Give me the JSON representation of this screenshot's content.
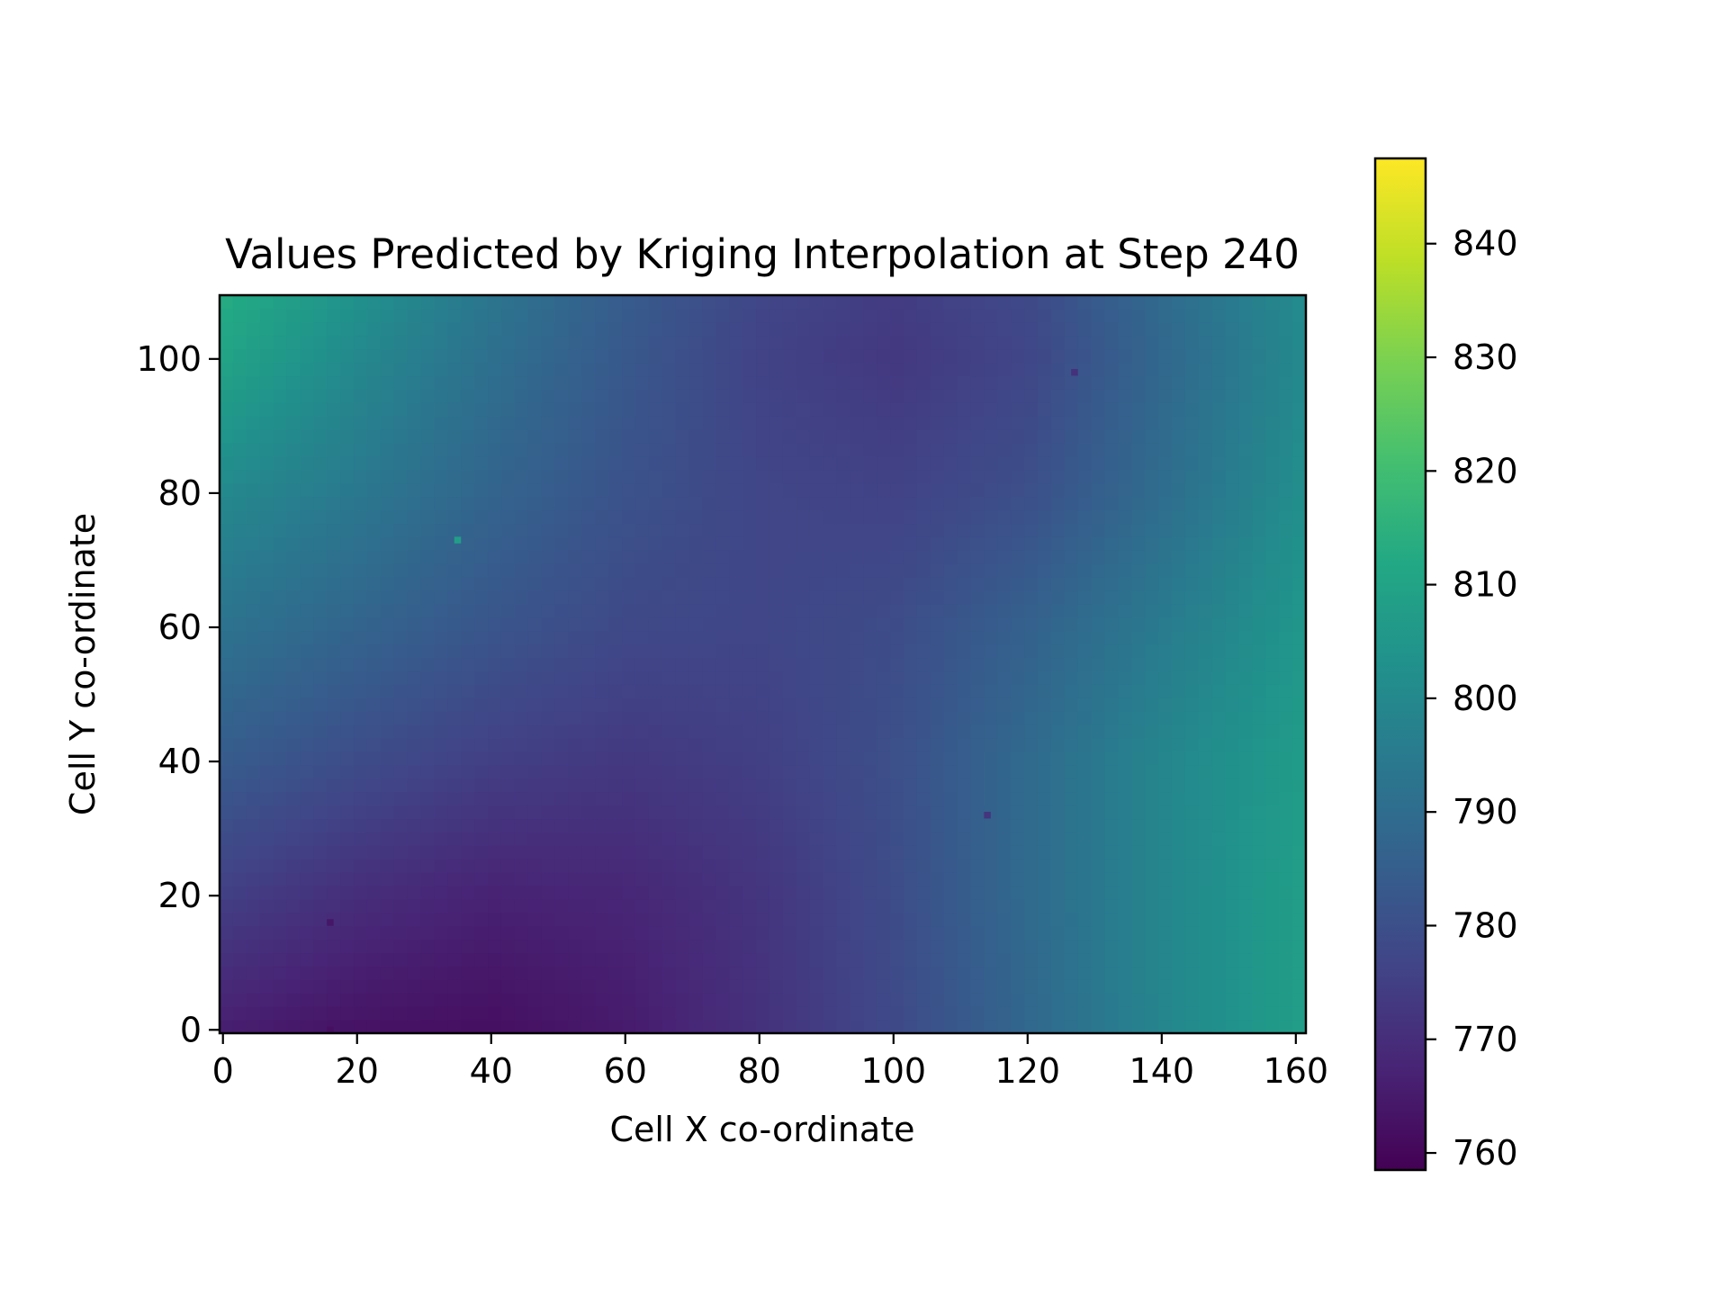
{
  "chart_data": {
    "type": "heatmap",
    "title": "Values Predicted by Kriging Interpolation at Step 240",
    "xlabel": "Cell X co-ordinate",
    "ylabel": "Cell Y co-ordinate",
    "xlim": [
      -0.5,
      161.5
    ],
    "ylim": [
      -0.5,
      109.5
    ],
    "xticks": [
      0,
      20,
      40,
      60,
      80,
      100,
      120,
      140,
      160
    ],
    "yticks": [
      0,
      20,
      40,
      60,
      80,
      100
    ],
    "colormap": "viridis",
    "colorbar": {
      "range": [
        758.5,
        847.5
      ],
      "ticks": [
        760,
        770,
        780,
        790,
        800,
        810,
        820,
        830,
        840
      ]
    },
    "grid": false,
    "field_samples": {
      "x": [
        0,
        20,
        40,
        60,
        80,
        100,
        120,
        140,
        161
      ],
      "y": [
        0,
        20,
        40,
        60,
        80,
        100,
        109
      ],
      "rows": [
        [
          766,
          763,
          762,
          765,
          771,
          778,
          788,
          799,
          808
        ],
        [
          775,
          770,
          767,
          768,
          772,
          779,
          789,
          799,
          808
        ],
        [
          784,
          779,
          775,
          773,
          775,
          780,
          789,
          799,
          807
        ],
        [
          792,
          787,
          782,
          778,
          777,
          779,
          786,
          795,
          805
        ],
        [
          800,
          794,
          787,
          781,
          777,
          776,
          780,
          790,
          802
        ],
        [
          810,
          800,
          791,
          783,
          776,
          773,
          777,
          788,
          800
        ],
        [
          813,
          803,
          793,
          784,
          777,
          774,
          778,
          789,
          801
        ]
      ]
    },
    "sample_points": [
      {
        "x": 35,
        "y": 73,
        "value": 808
      },
      {
        "x": 127,
        "y": 98,
        "value": 771
      },
      {
        "x": 114,
        "y": 32,
        "value": 772
      },
      {
        "x": 16,
        "y": 16,
        "value": 764
      },
      {
        "x": 16,
        "y": 0,
        "value": 762
      }
    ]
  }
}
